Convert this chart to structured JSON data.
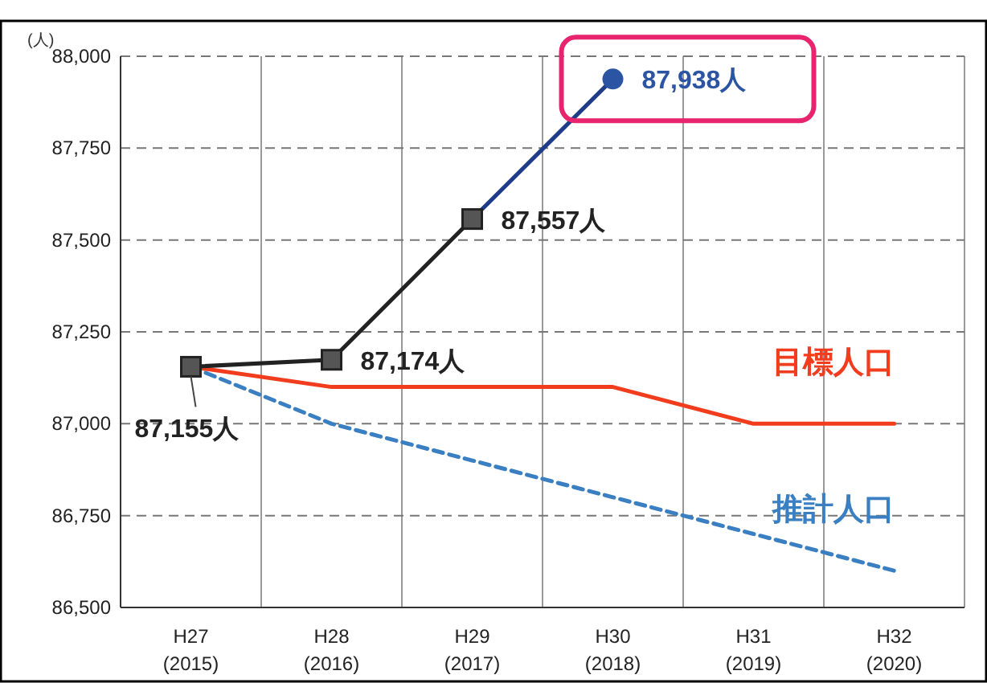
{
  "chart_data": {
    "type": "line",
    "ylabel": "(人)",
    "categories": [
      "H27 (2015)",
      "H28 (2016)",
      "H29 (2017)",
      "H30 (2018)",
      "H31 (2019)",
      "H32 (2020)"
    ],
    "ylim": [
      86500,
      88000
    ],
    "yticks": [
      {
        "value": 86500,
        "label": "86,500"
      },
      {
        "value": 86750,
        "label": "86,750"
      },
      {
        "value": 87000,
        "label": "87,000"
      },
      {
        "value": 87250,
        "label": "87,250"
      },
      {
        "value": 87500,
        "label": "87,500"
      },
      {
        "value": 87750,
        "label": "87,750"
      },
      {
        "value": 88000,
        "label": "88,000"
      }
    ],
    "grid": true,
    "series": [
      {
        "name": "推計人口",
        "color": "#3a7fc1",
        "line_style": "dashed",
        "marker": "none",
        "values": [
          87155,
          87000,
          86900,
          86800,
          86700,
          86600
        ]
      },
      {
        "name": "目標人口",
        "color": "#f23c1e",
        "line_style": "solid",
        "marker": "none",
        "values": [
          87155,
          87100,
          87100,
          87100,
          87000,
          87000
        ]
      },
      {
        "color": "#1f3c88",
        "line_style": "solid",
        "marker": "none",
        "values": [
          null,
          null,
          87557,
          87938,
          null,
          null
        ]
      },
      {
        "color": "#222222",
        "line_style": "solid",
        "marker": "square",
        "values": [
          87155,
          87174,
          87557,
          null,
          null,
          null
        ],
        "value_labels": [
          "87,155人",
          "87,174人",
          "87,557人",
          null,
          null,
          null
        ]
      },
      {
        "type": "scatter",
        "color": "#2b55a3",
        "marker": "circle",
        "values": [
          null,
          null,
          null,
          87938,
          null,
          null
        ],
        "value_labels": [
          null,
          null,
          null,
          "87,938人",
          null,
          null
        ]
      }
    ]
  }
}
